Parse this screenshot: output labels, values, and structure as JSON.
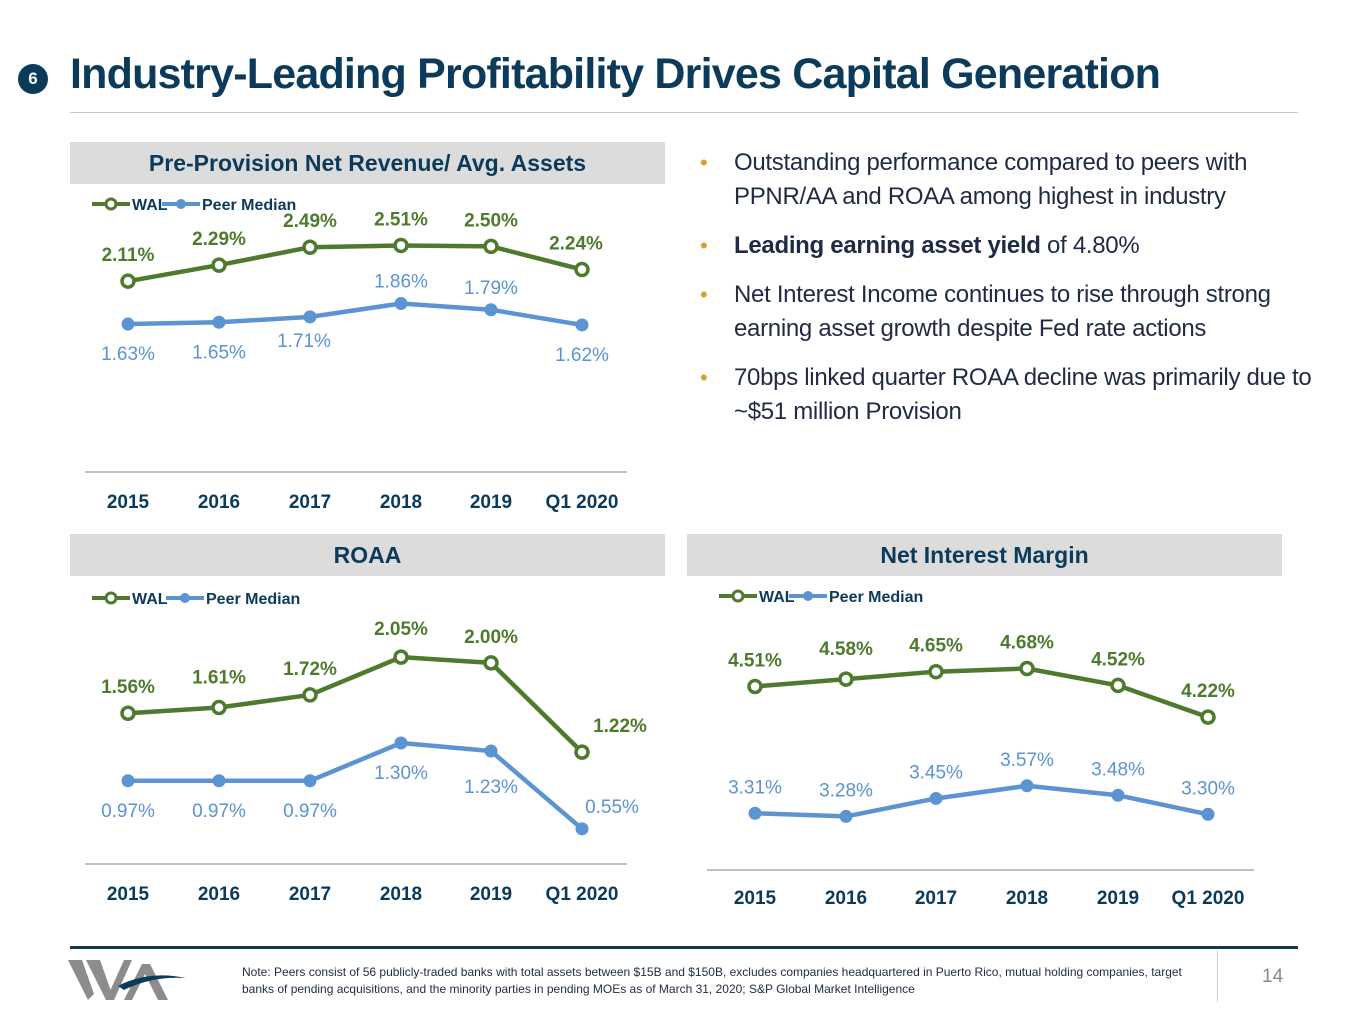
{
  "header": {
    "badge": "6",
    "title": "Industry-Leading Profitability Drives Capital Generation"
  },
  "colors": {
    "wal": "#4e7a2e",
    "peer": "#5b93d3",
    "navy": "#0c3a5b",
    "bullet": "#e09b2d"
  },
  "bullets": {
    "b1": "Outstanding performance compared to peers with PPNR/AA and ROAA among highest in industry",
    "b2_bold": "Leading earning asset yield",
    "b2_rest": " of 4.80%",
    "b3": "Net Interest Income continues to rise through strong earning asset growth despite Fed rate actions",
    "b4": "70bps linked quarter ROAA decline was primarily due to ~$51 million Provision"
  },
  "chart_data": [
    {
      "type": "line",
      "title": "Pre-Provision Net Revenue/ Avg. Assets",
      "categories": [
        "2015",
        "2016",
        "2017",
        "2018",
        "2019",
        "Q1 2020"
      ],
      "series": [
        {
          "name": "WAL",
          "values": [
            2.11,
            2.29,
            2.49,
            2.51,
            2.5,
            2.24
          ],
          "labels": [
            "2.11%",
            "2.29%",
            "2.49%",
            "2.51%",
            "2.50%",
            "2.24%"
          ]
        },
        {
          "name": "Peer Median",
          "values": [
            1.63,
            1.65,
            1.71,
            1.86,
            1.79,
            1.62
          ],
          "labels": [
            "1.63%",
            "1.65%",
            "1.71%",
            "1.86%",
            "1.79%",
            "1.62%"
          ]
        }
      ],
      "ylim": [
        1.25,
        2.75
      ],
      "legend": "top-left"
    },
    {
      "type": "line",
      "title": "ROAA",
      "categories": [
        "2015",
        "2016",
        "2017",
        "2018",
        "2019",
        "Q1 2020"
      ],
      "series": [
        {
          "name": "WAL",
          "values": [
            1.56,
            1.61,
            1.72,
            2.05,
            2.0,
            1.22
          ],
          "labels": [
            "1.56%",
            "1.61%",
            "1.72%",
            "2.05%",
            "2.00%",
            "1.22%"
          ]
        },
        {
          "name": "Peer Median",
          "values": [
            0.97,
            0.97,
            0.97,
            1.3,
            1.23,
            0.55
          ],
          "labels": [
            "0.97%",
            "0.97%",
            "0.97%",
            "1.30%",
            "1.23%",
            "0.55%"
          ]
        }
      ],
      "ylim": [
        0.4,
        2.2
      ],
      "legend": "top-left"
    },
    {
      "type": "line",
      "title": "Net Interest Margin",
      "categories": [
        "2015",
        "2016",
        "2017",
        "2018",
        "2019",
        "Q1 2020"
      ],
      "series": [
        {
          "name": "WAL",
          "values": [
            4.51,
            4.58,
            4.65,
            4.68,
            4.52,
            4.22
          ],
          "labels": [
            "4.51%",
            "4.58%",
            "4.65%",
            "4.68%",
            "4.52%",
            "4.22%"
          ]
        },
        {
          "name": "Peer Median",
          "values": [
            3.31,
            3.28,
            3.45,
            3.57,
            3.48,
            3.3
          ],
          "labels": [
            "3.31%",
            "3.28%",
            "3.45%",
            "3.57%",
            "3.48%",
            "3.30%"
          ]
        }
      ],
      "ylim": [
        3.0,
        4.95
      ],
      "legend": "top-left"
    }
  ],
  "footer": {
    "note": "Note: Peers consist of 56 publicly-traded banks with total assets between $15B and $150B, excludes companies headquartered in Puerto Rico, mutual holding companies, target banks of pending acquisitions, and the minority parties in pending MOEs as of March 31, 2020; S&P Global Market Intelligence",
    "page": "14",
    "logo_icon": "wa-logo-icon"
  }
}
